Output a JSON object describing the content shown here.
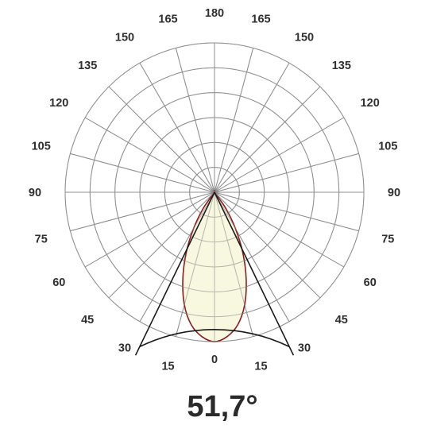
{
  "chart_data": {
    "type": "polar",
    "subtype": "luminous-intensity-distribution",
    "angle_tick_labels": [
      "0",
      "15",
      "30",
      "45",
      "60",
      "75",
      "90",
      "105",
      "120",
      "135",
      "150",
      "165",
      "180",
      "165",
      "150",
      "135",
      "120",
      "105",
      "90",
      "75",
      "60",
      "45",
      "30",
      "15"
    ],
    "angle_ticks_deg": [
      0,
      15,
      30,
      45,
      60,
      75,
      90,
      105,
      120,
      135,
      150,
      165,
      180,
      195,
      210,
      225,
      240,
      255,
      270,
      285,
      300,
      315,
      330,
      345
    ],
    "radial_rings": 6,
    "grid": true,
    "series": [
      {
        "angles_deg": [
          0,
          5,
          10,
          15,
          20,
          25,
          30,
          35,
          40
        ],
        "relative_intensity": [
          1.0,
          0.97,
          0.9,
          0.78,
          0.62,
          0.45,
          0.28,
          0.13,
          0.0
        ]
      }
    ],
    "beam_angle_label": "51,7°",
    "beam_angle_deg": 51.7,
    "colors": {
      "grid": "#8f8f8f",
      "curve_stroke": "#8a1d1d",
      "curve_fill": "#f7f7dc",
      "beam_lines": "#1a1a1a"
    }
  }
}
